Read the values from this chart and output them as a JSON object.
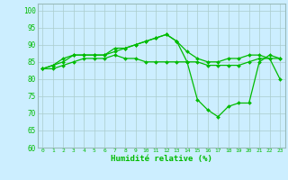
{
  "title": "",
  "xlabel": "Humidité relative (%)",
  "ylabel": "",
  "background_color": "#cceeff",
  "grid_color": "#aacccc",
  "line_color": "#00bb00",
  "xlim": [
    -0.5,
    23.5
  ],
  "ylim": [
    60,
    102
  ],
  "yticks": [
    60,
    65,
    70,
    75,
    80,
    85,
    90,
    95,
    100
  ],
  "xticks": [
    0,
    1,
    2,
    3,
    4,
    5,
    6,
    7,
    8,
    9,
    10,
    11,
    12,
    13,
    14,
    15,
    16,
    17,
    18,
    19,
    20,
    21,
    22,
    23
  ],
  "series1": [
    83,
    83,
    84,
    85,
    86,
    86,
    86,
    87,
    86,
    86,
    85,
    85,
    85,
    85,
    85,
    85,
    84,
    84,
    84,
    84,
    85,
    86,
    86,
    86
  ],
  "series2": [
    83,
    84,
    86,
    87,
    87,
    87,
    87,
    89,
    89,
    90,
    91,
    92,
    93,
    91,
    85,
    74,
    71,
    69,
    72,
    73,
    73,
    85,
    87,
    86
  ],
  "series3": [
    83,
    84,
    85,
    87,
    87,
    87,
    87,
    88,
    89,
    90,
    91,
    92,
    93,
    91,
    88,
    86,
    85,
    85,
    86,
    86,
    87,
    87,
    86,
    80
  ]
}
